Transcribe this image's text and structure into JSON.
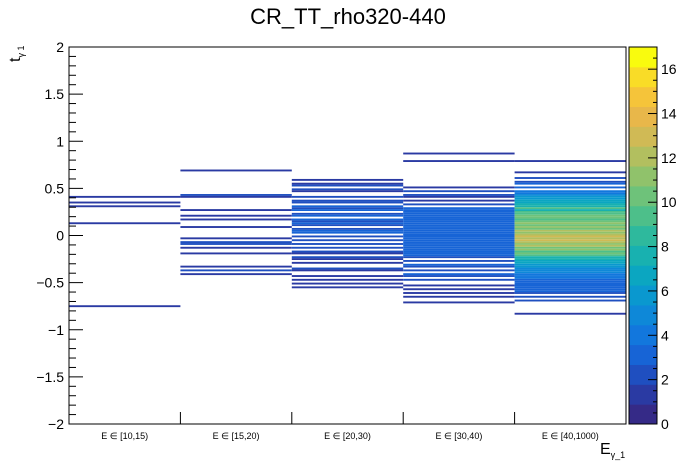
{
  "chart_data": {
    "type": "heatmap",
    "title": "CR_TT_rho320-440",
    "ylabel_main": "t",
    "ylabel_sub": "γ 1",
    "xlabel_main": "E",
    "xlabel_sub": "γ_1",
    "categories": [
      "E ∈ [10,15)",
      "E ∈ [15,20)",
      "E ∈ [20,30)",
      "E ∈ [30,40)",
      "E ∈ [40,1000)"
    ],
    "ylim": [
      -2,
      2
    ],
    "y_ticks": [
      {
        "value": 2,
        "label": "2"
      },
      {
        "value": 1.5,
        "label": "1.5"
      },
      {
        "value": 1,
        "label": "1"
      },
      {
        "value": 0.5,
        "label": "0.5"
      },
      {
        "value": 0,
        "label": "0"
      },
      {
        "value": -0.5,
        "label": "−0.5"
      },
      {
        "value": -1,
        "label": "−1"
      },
      {
        "value": -1.5,
        "label": "−1.5"
      },
      {
        "value": -2,
        "label": "−2"
      }
    ],
    "zlim": [
      0,
      17
    ],
    "z_ticks": [
      {
        "value": 0,
        "label": "0"
      },
      {
        "value": 2,
        "label": "2"
      },
      {
        "value": 4,
        "label": "4"
      },
      {
        "value": 6,
        "label": "6"
      },
      {
        "value": 8,
        "label": "8"
      },
      {
        "value": 10,
        "label": "10"
      },
      {
        "value": 12,
        "label": "12"
      },
      {
        "value": 14,
        "label": "14"
      },
      {
        "value": 16,
        "label": "16"
      }
    ],
    "bin_height": 0.02,
    "colormap": [
      "#352a87",
      "#2a3aa3",
      "#1f4fc0",
      "#1764d6",
      "#1277dd",
      "#0e88d8",
      "#0a98cf",
      "#0ba6c1",
      "#18b1b0",
      "#2eb99d",
      "#4dbf8a",
      "#6ec27a",
      "#90c26b",
      "#b2bf5f",
      "#d0ba55",
      "#e8b74a",
      "#f5c43a",
      "#f9dc27",
      "#f9fb0e"
    ],
    "bins": [
      {
        "col": 0,
        "entries": [
          [
            0.4,
            1
          ],
          [
            0.34,
            1
          ],
          [
            0.3,
            1
          ],
          [
            0.12,
            1
          ],
          [
            -0.76,
            1
          ]
        ]
      },
      {
        "col": 1,
        "entries": [
          [
            0.68,
            1
          ],
          [
            0.42,
            2
          ],
          [
            0.4,
            1
          ],
          [
            0.26,
            1
          ],
          [
            0.2,
            1
          ],
          [
            0.16,
            1
          ],
          [
            0.08,
            1
          ],
          [
            -0.04,
            1
          ],
          [
            -0.08,
            2
          ],
          [
            -0.1,
            2
          ],
          [
            -0.14,
            1
          ],
          [
            -0.2,
            1
          ],
          [
            -0.34,
            1
          ],
          [
            -0.38,
            2
          ],
          [
            -0.42,
            1
          ]
        ]
      },
      {
        "col": 2,
        "entries": [
          [
            0.58,
            1
          ],
          [
            0.54,
            1
          ],
          [
            0.52,
            2
          ],
          [
            0.48,
            2
          ],
          [
            0.46,
            1
          ],
          [
            0.4,
            2
          ],
          [
            0.36,
            2
          ],
          [
            0.34,
            2
          ],
          [
            0.3,
            3
          ],
          [
            0.28,
            2
          ],
          [
            0.26,
            3
          ],
          [
            0.22,
            2
          ],
          [
            0.2,
            3
          ],
          [
            0.16,
            3
          ],
          [
            0.14,
            2
          ],
          [
            0.12,
            3
          ],
          [
            0.1,
            2
          ],
          [
            0.06,
            2
          ],
          [
            0.04,
            3
          ],
          [
            0.02,
            3
          ],
          [
            -0.02,
            2
          ],
          [
            -0.06,
            2
          ],
          [
            -0.1,
            2
          ],
          [
            -0.14,
            2
          ],
          [
            -0.18,
            2
          ],
          [
            -0.2,
            1
          ],
          [
            -0.24,
            2
          ],
          [
            -0.26,
            1
          ],
          [
            -0.3,
            1
          ],
          [
            -0.36,
            2
          ],
          [
            -0.38,
            1
          ],
          [
            -0.44,
            1
          ],
          [
            -0.48,
            1
          ],
          [
            -0.52,
            1
          ],
          [
            -0.56,
            1
          ]
        ]
      },
      {
        "col": 3,
        "entries": [
          [
            0.86,
            1
          ],
          [
            0.78,
            1
          ],
          [
            0.5,
            1
          ],
          [
            0.46,
            2
          ],
          [
            0.42,
            2
          ],
          [
            0.4,
            1
          ],
          [
            0.36,
            1
          ],
          [
            0.32,
            2
          ],
          [
            0.28,
            3
          ],
          [
            0.26,
            3
          ],
          [
            0.24,
            3
          ],
          [
            0.22,
            3
          ],
          [
            0.2,
            3
          ],
          [
            0.18,
            3
          ],
          [
            0.16,
            3
          ],
          [
            0.14,
            3
          ],
          [
            0.12,
            3
          ],
          [
            0.1,
            3
          ],
          [
            0.08,
            3
          ],
          [
            0.06,
            3
          ],
          [
            0.04,
            3
          ],
          [
            0.02,
            3
          ],
          [
            0.0,
            3
          ],
          [
            -0.02,
            3
          ],
          [
            -0.04,
            3
          ],
          [
            -0.06,
            3
          ],
          [
            -0.08,
            3
          ],
          [
            -0.1,
            3
          ],
          [
            -0.12,
            3
          ],
          [
            -0.14,
            3
          ],
          [
            -0.16,
            3
          ],
          [
            -0.18,
            3
          ],
          [
            -0.2,
            3
          ],
          [
            -0.22,
            3
          ],
          [
            -0.24,
            2
          ],
          [
            -0.28,
            2
          ],
          [
            -0.32,
            3
          ],
          [
            -0.34,
            2
          ],
          [
            -0.38,
            2
          ],
          [
            -0.42,
            3
          ],
          [
            -0.44,
            2
          ],
          [
            -0.48,
            2
          ],
          [
            -0.54,
            1
          ],
          [
            -0.58,
            1
          ],
          [
            -0.62,
            1
          ],
          [
            -0.66,
            1
          ],
          [
            -0.72,
            1
          ]
        ]
      },
      {
        "col": 4,
        "entries": [
          [
            0.78,
            1
          ],
          [
            0.66,
            1
          ],
          [
            0.6,
            2
          ],
          [
            0.56,
            2
          ],
          [
            0.54,
            3
          ],
          [
            0.5,
            3
          ],
          [
            0.46,
            4
          ],
          [
            0.44,
            4
          ],
          [
            0.42,
            5
          ],
          [
            0.4,
            6
          ],
          [
            0.38,
            6
          ],
          [
            0.36,
            7
          ],
          [
            0.34,
            7
          ],
          [
            0.32,
            8
          ],
          [
            0.3,
            8
          ],
          [
            0.28,
            9
          ],
          [
            0.26,
            8
          ],
          [
            0.24,
            9
          ],
          [
            0.22,
            9
          ],
          [
            0.2,
            10
          ],
          [
            0.18,
            10
          ],
          [
            0.16,
            9
          ],
          [
            0.14,
            10
          ],
          [
            0.12,
            11
          ],
          [
            0.1,
            10
          ],
          [
            0.08,
            11
          ],
          [
            0.06,
            10
          ],
          [
            0.04,
            12
          ],
          [
            0.02,
            11
          ],
          [
            0.0,
            12
          ],
          [
            -0.02,
            13
          ],
          [
            -0.04,
            12
          ],
          [
            -0.06,
            13
          ],
          [
            -0.08,
            12
          ],
          [
            -0.1,
            11
          ],
          [
            -0.12,
            12
          ],
          [
            -0.14,
            10
          ],
          [
            -0.16,
            11
          ],
          [
            -0.18,
            9
          ],
          [
            -0.2,
            10
          ],
          [
            -0.22,
            9
          ],
          [
            -0.24,
            8
          ],
          [
            -0.26,
            8
          ],
          [
            -0.28,
            7
          ],
          [
            -0.3,
            7
          ],
          [
            -0.32,
            6
          ],
          [
            -0.34,
            6
          ],
          [
            -0.36,
            5
          ],
          [
            -0.38,
            5
          ],
          [
            -0.4,
            5
          ],
          [
            -0.42,
            4
          ],
          [
            -0.44,
            4
          ],
          [
            -0.46,
            4
          ],
          [
            -0.48,
            3
          ],
          [
            -0.5,
            3
          ],
          [
            -0.52,
            3
          ],
          [
            -0.54,
            3
          ],
          [
            -0.56,
            3
          ],
          [
            -0.58,
            3
          ],
          [
            -0.6,
            3
          ],
          [
            -0.62,
            2
          ],
          [
            -0.66,
            2
          ],
          [
            -0.7,
            2
          ],
          [
            -0.84,
            1
          ]
        ]
      }
    ]
  }
}
